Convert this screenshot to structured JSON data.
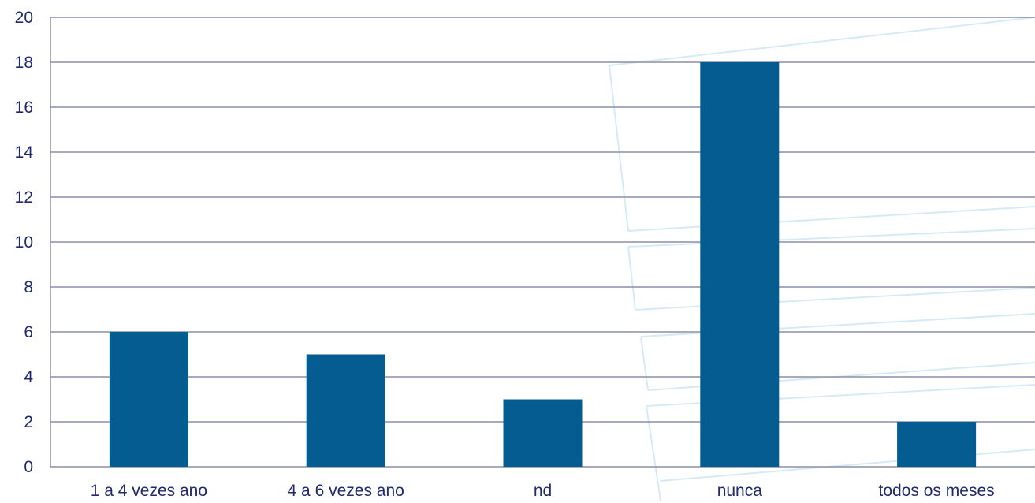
{
  "chart_data": {
    "type": "bar",
    "title": "",
    "xlabel": "",
    "ylabel": "",
    "categories": [
      "1 a 4 vezes ano",
      "4 a 6 vezes ano",
      "nd",
      "nunca",
      "todos os meses"
    ],
    "values": [
      6,
      5,
      3,
      18,
      2
    ],
    "ylim": [
      0,
      20
    ],
    "yticks": [
      "0",
      "2",
      "4",
      "6",
      "8",
      "10",
      "12",
      "14",
      "16",
      "18",
      "20"
    ],
    "grid": true,
    "legend": "none",
    "bar_color": "#045c91",
    "grid_color": "#8c8fa8",
    "text_color": "#1f2a6b",
    "watermark_color": "#d6eaf6"
  }
}
